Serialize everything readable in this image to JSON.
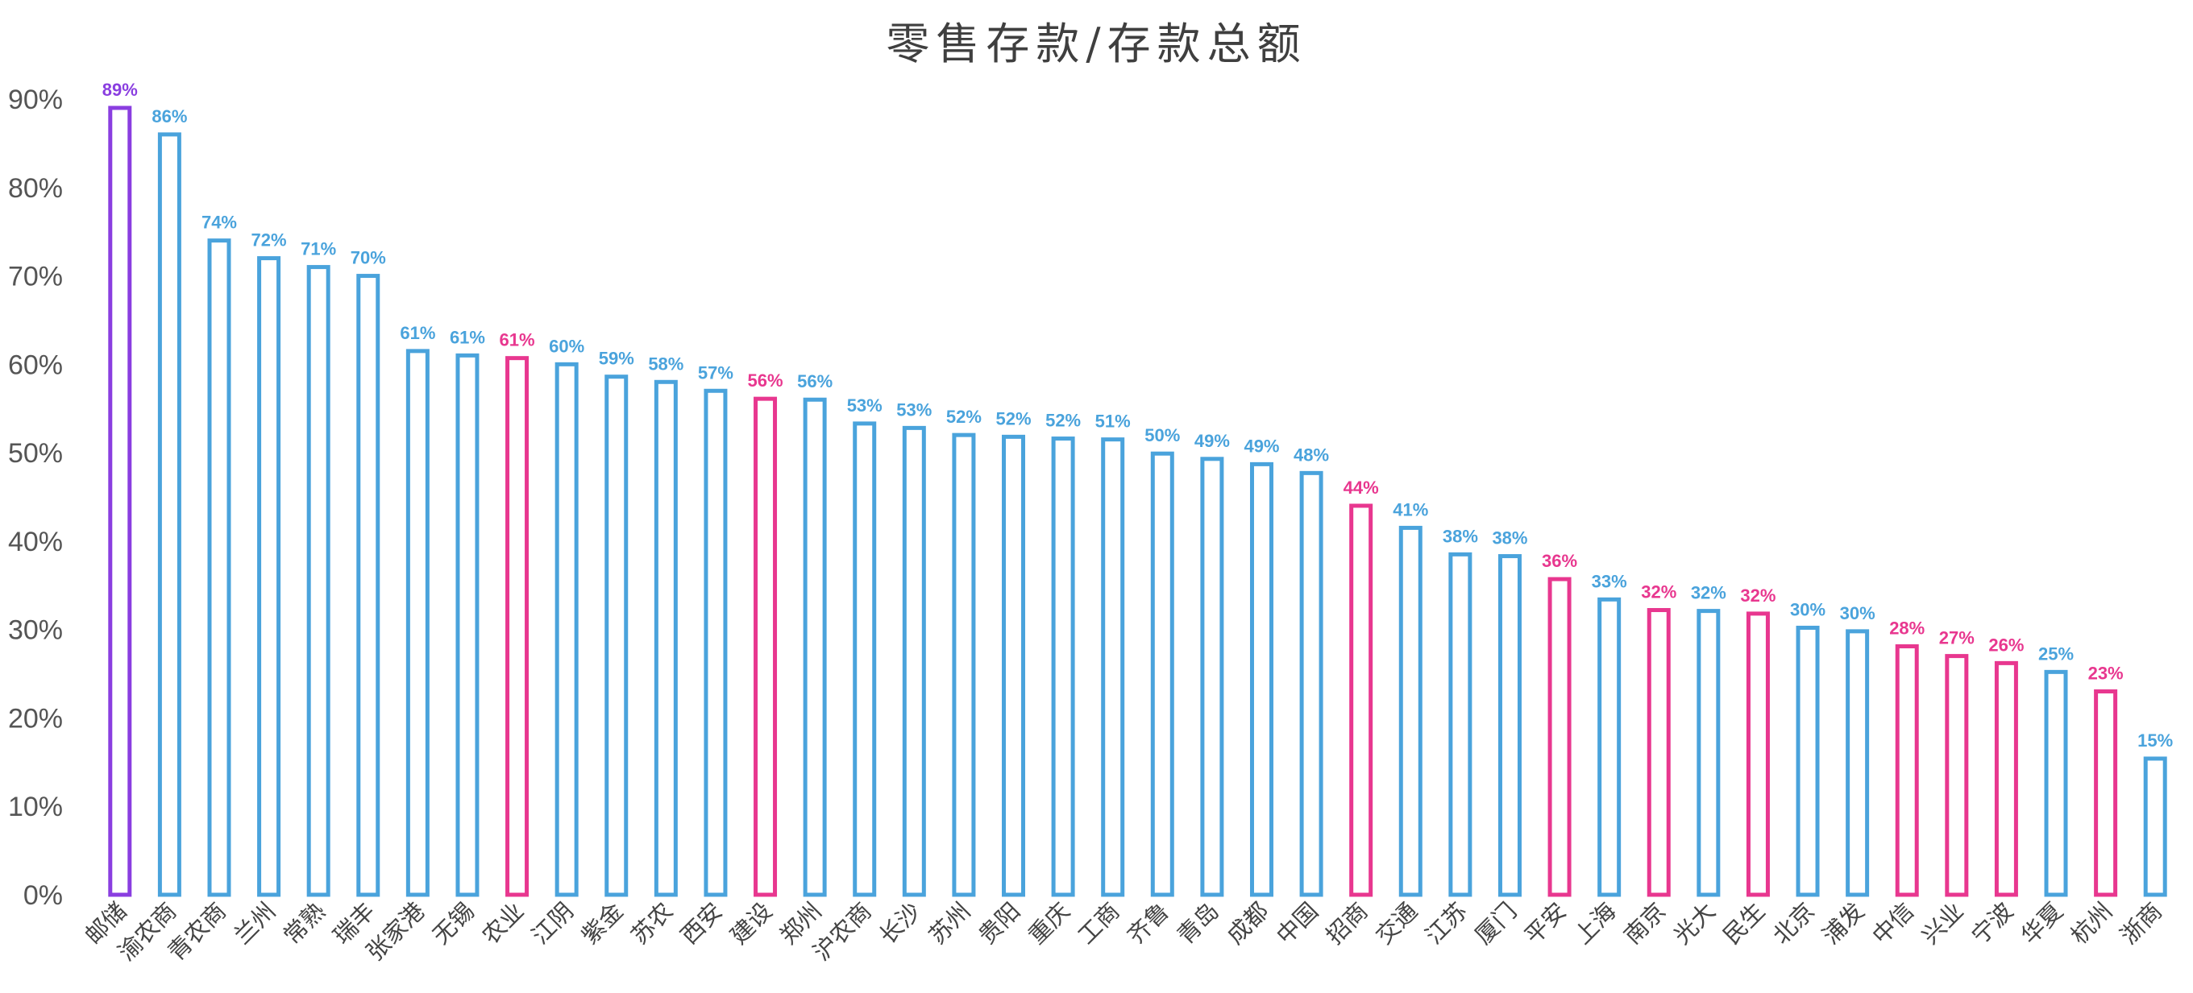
{
  "chart_data": {
    "type": "bar",
    "title": "零售存款/存款总额",
    "xlabel": "",
    "ylabel": "",
    "ylim": [
      0,
      0.9
    ],
    "y_ticks": [
      "0%",
      "10%",
      "20%",
      "30%",
      "40%",
      "50%",
      "60%",
      "70%",
      "80%",
      "90%"
    ],
    "grid": false,
    "legend": "none",
    "bar_style": "outline",
    "colors": {
      "highlight": "#8a3ee0",
      "state": "#e8378f",
      "other": "#4aa3dc"
    },
    "categories": [
      "邮储",
      "渝农商",
      "青农商",
      "兰州",
      "常熟",
      "瑞丰",
      "张家港",
      "无锡",
      "农业",
      "江阴",
      "紫金",
      "苏农",
      "西安",
      "建设",
      "郑州",
      "沪农商",
      "长沙",
      "苏州",
      "贵阳",
      "重庆",
      "工商",
      "齐鲁",
      "青岛",
      "成都",
      "中国",
      "招商",
      "交通",
      "江苏",
      "厦门",
      "平安",
      "上海",
      "南京",
      "光大",
      "民生",
      "北京",
      "浦发",
      "中信",
      "兴业",
      "宁波",
      "华夏",
      "杭州",
      "浙商"
    ],
    "values": [
      0.89,
      0.86,
      0.74,
      0.72,
      0.71,
      0.7,
      0.615,
      0.61,
      0.607,
      0.6,
      0.586,
      0.58,
      0.57,
      0.561,
      0.56,
      0.533,
      0.528,
      0.52,
      0.518,
      0.516,
      0.515,
      0.499,
      0.493,
      0.487,
      0.477,
      0.44,
      0.415,
      0.385,
      0.383,
      0.357,
      0.334,
      0.322,
      0.321,
      0.318,
      0.302,
      0.298,
      0.281,
      0.27,
      0.262,
      0.252,
      0.23,
      0.154
    ],
    "value_labels": [
      "89%",
      "86%",
      "74%",
      "72%",
      "71%",
      "70%",
      "61%",
      "61%",
      "61%",
      "60%",
      "59%",
      "58%",
      "57%",
      "56%",
      "56%",
      "53%",
      "53%",
      "52%",
      "52%",
      "52%",
      "51%",
      "50%",
      "49%",
      "49%",
      "48%",
      "44%",
      "41%",
      "38%",
      "38%",
      "36%",
      "33%",
      "32%",
      "32%",
      "32%",
      "30%",
      "30%",
      "28%",
      "27%",
      "26%",
      "25%",
      "23%",
      "15%"
    ],
    "bar_colors": [
      "highlight",
      "other",
      "other",
      "other",
      "other",
      "other",
      "other",
      "other",
      "state",
      "other",
      "other",
      "other",
      "other",
      "state",
      "other",
      "other",
      "other",
      "other",
      "other",
      "other",
      "other",
      "other",
      "other",
      "other",
      "other",
      "state",
      "other",
      "other",
      "other",
      "state",
      "other",
      "state",
      "other",
      "state",
      "other",
      "other",
      "state",
      "state",
      "state",
      "other",
      "state",
      "other"
    ]
  }
}
